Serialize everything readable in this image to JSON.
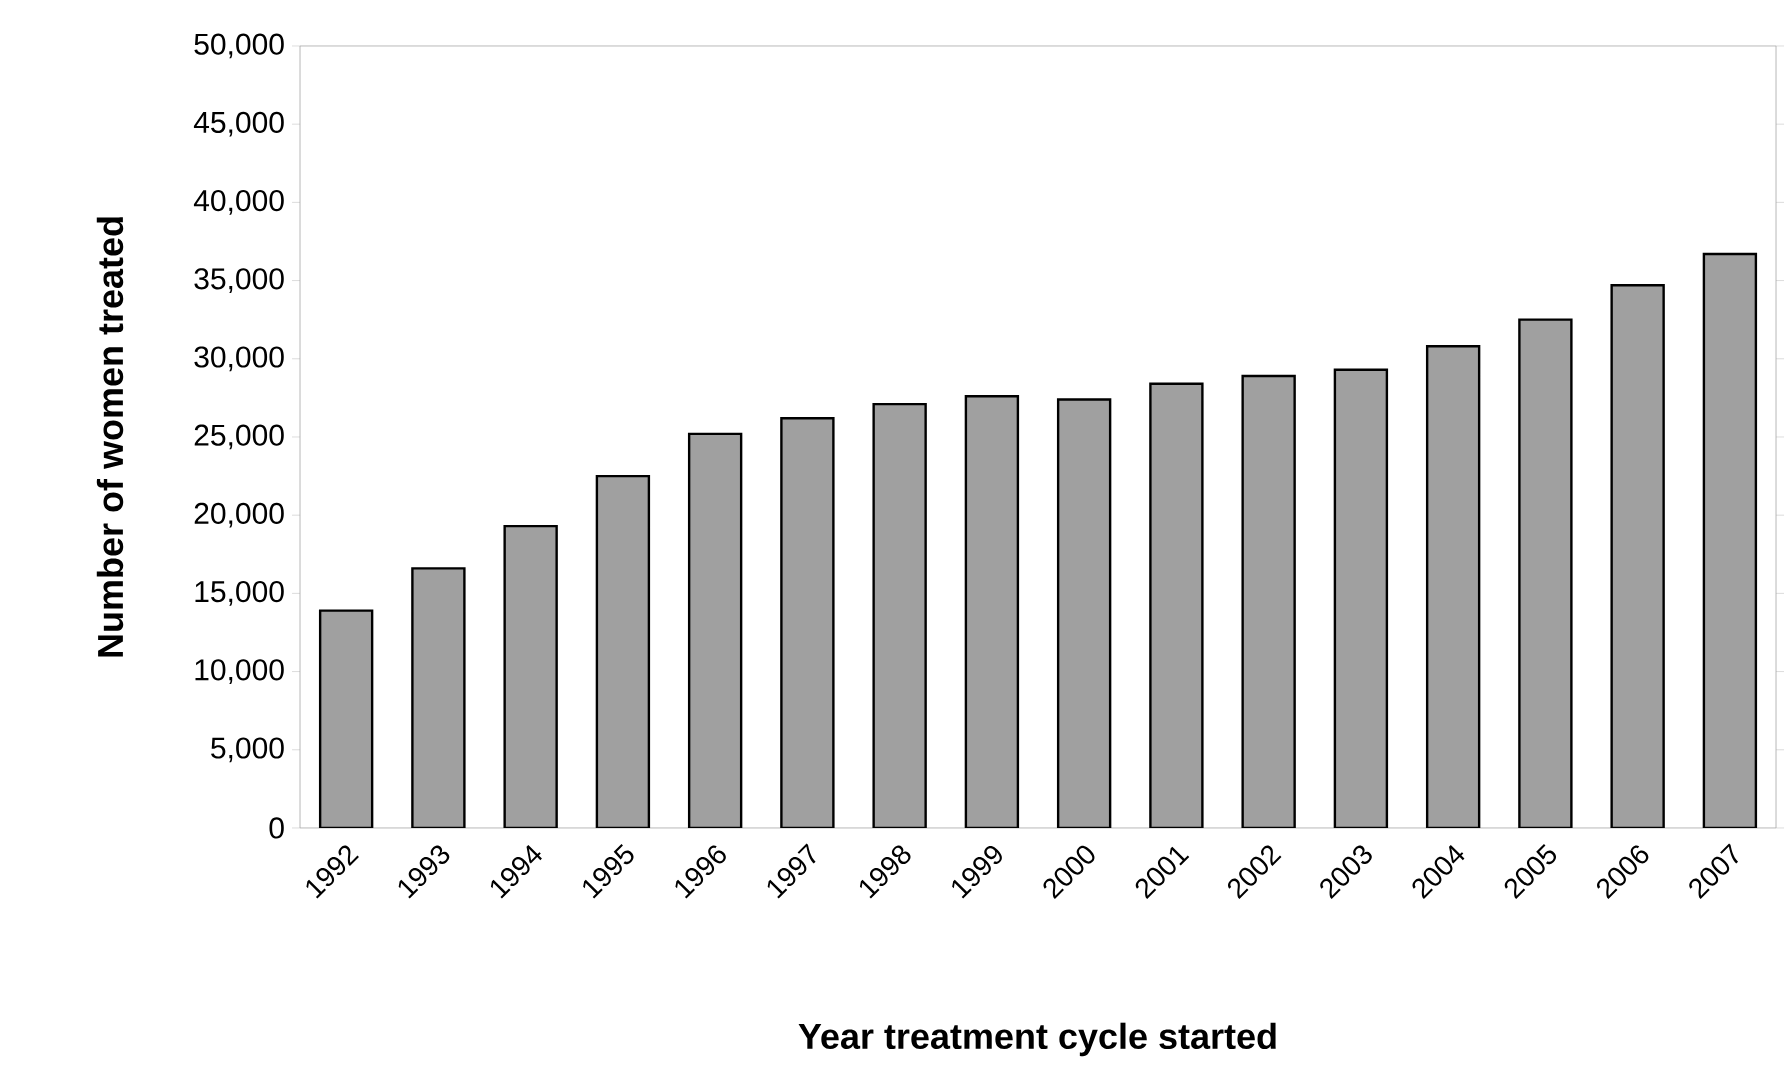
{
  "chart_data": {
    "type": "bar",
    "xlabel": "Year treatment cycle started",
    "ylabel": "Number of women treated",
    "categories": [
      "1992",
      "1993",
      "1994",
      "1995",
      "1996",
      "1997",
      "1998",
      "1999",
      "2000",
      "2001",
      "2002",
      "2003",
      "2004",
      "2005",
      "2006",
      "2007"
    ],
    "values": [
      13900,
      16600,
      19300,
      22500,
      25200,
      26200,
      27100,
      27600,
      27400,
      28400,
      28900,
      29300,
      30800,
      32500,
      34700,
      36700
    ],
    "color": "#a0a0a0",
    "ylim": [
      0,
      50000
    ],
    "yticks": [
      {
        "value": 0,
        "label": "0"
      },
      {
        "value": 5000,
        "label": "5,000"
      },
      {
        "value": 10000,
        "label": "10,000"
      },
      {
        "value": 15000,
        "label": "15,000"
      },
      {
        "value": 20000,
        "label": "20,000"
      },
      {
        "value": 25000,
        "label": "25,000"
      },
      {
        "value": 30000,
        "label": "30,000"
      },
      {
        "value": 35000,
        "label": "35,000"
      },
      {
        "value": 40000,
        "label": "40,000"
      },
      {
        "value": 45000,
        "label": "45,000"
      },
      {
        "value": 50000,
        "label": "50,000"
      }
    ],
    "grid": false
  }
}
